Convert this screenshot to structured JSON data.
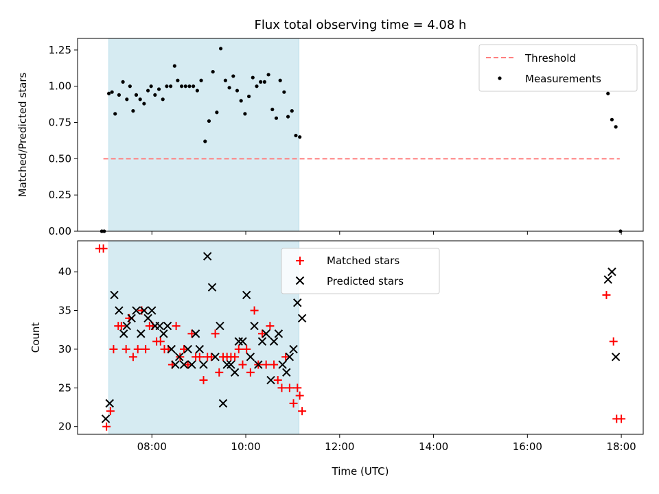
{
  "chart_data": [
    {
      "type": "scatter",
      "title": "Flux total observing time = 4.08 h",
      "ylabel": "Matched/Predicted stars",
      "xlabel": "",
      "ylim": [
        0,
        1.33
      ],
      "yticks": [
        0,
        0.25,
        0.5,
        0.75,
        1.0,
        1.25
      ],
      "ytick_labels": [
        "0.00",
        "0.25",
        "0.50",
        "0.75",
        "1.00",
        "1.25"
      ],
      "legend": {
        "placement": "top-right",
        "entries": [
          "Threshold",
          "Measurements"
        ]
      },
      "threshold": {
        "name": "Threshold",
        "value": 0.5,
        "x_start": "06:58",
        "x_end": "17:58",
        "color": "#ff7f7f"
      },
      "shaded_interval": {
        "start": "07:05",
        "end": "11:08",
        "color": "#add8e6"
      },
      "series": [
        {
          "name": "Measurements",
          "color": "#000000",
          "points": [
            [
              "06:56",
              0.0
            ],
            [
              "06:59",
              0.0
            ],
            [
              "07:05",
              0.95
            ],
            [
              "07:09",
              0.96
            ],
            [
              "07:13",
              0.81
            ],
            [
              "07:18",
              0.94
            ],
            [
              "07:23",
              1.03
            ],
            [
              "07:28",
              0.91
            ],
            [
              "07:32",
              1.0
            ],
            [
              "07:36",
              0.83
            ],
            [
              "07:40",
              0.94
            ],
            [
              "07:45",
              0.91
            ],
            [
              "07:50",
              0.88
            ],
            [
              "07:55",
              0.97
            ],
            [
              "07:59",
              1.0
            ],
            [
              "08:04",
              0.94
            ],
            [
              "08:09",
              0.98
            ],
            [
              "08:14",
              0.91
            ],
            [
              "08:19",
              1.0
            ],
            [
              "08:24",
              1.0
            ],
            [
              "08:29",
              1.14
            ],
            [
              "08:33",
              1.04
            ],
            [
              "08:38",
              1.0
            ],
            [
              "08:43",
              1.0
            ],
            [
              "08:48",
              1.0
            ],
            [
              "08:53",
              1.0
            ],
            [
              "08:58",
              0.97
            ],
            [
              "09:03",
              1.04
            ],
            [
              "09:08",
              0.62
            ],
            [
              "09:13",
              0.76
            ],
            [
              "09:18",
              1.1
            ],
            [
              "09:23",
              0.82
            ],
            [
              "09:28",
              1.26
            ],
            [
              "09:34",
              1.04
            ],
            [
              "09:39",
              0.99
            ],
            [
              "09:44",
              1.07
            ],
            [
              "09:49",
              0.97
            ],
            [
              "09:54",
              0.9
            ],
            [
              "09:59",
              0.81
            ],
            [
              "10:04",
              0.93
            ],
            [
              "10:09",
              1.06
            ],
            [
              "10:14",
              1.0
            ],
            [
              "10:19",
              1.03
            ],
            [
              "10:24",
              1.03
            ],
            [
              "10:29",
              1.08
            ],
            [
              "10:34",
              0.84
            ],
            [
              "10:39",
              0.78
            ],
            [
              "10:44",
              1.04
            ],
            [
              "10:49",
              0.96
            ],
            [
              "10:54",
              0.79
            ],
            [
              "10:59",
              0.83
            ],
            [
              "11:04",
              0.66
            ],
            [
              "11:09",
              0.65
            ],
            [
              "17:43",
              0.95
            ],
            [
              "17:48",
              0.77
            ],
            [
              "17:53",
              0.72
            ],
            [
              "17:59",
              0.0
            ]
          ]
        }
      ]
    },
    {
      "type": "scatter",
      "title": "",
      "ylabel": "Count",
      "xlabel": "Time (UTC)",
      "ylim": [
        19,
        44
      ],
      "yticks": [
        20,
        25,
        30,
        35,
        40
      ],
      "xlim": [
        "06:25",
        "18:28"
      ],
      "xticks": [
        "08:00",
        "10:00",
        "12:00",
        "14:00",
        "16:00",
        "18:00"
      ],
      "legend": {
        "placement": "top-center",
        "entries": [
          "Matched stars",
          "Predicted stars"
        ]
      },
      "shaded_interval": {
        "start": "07:05",
        "end": "11:08",
        "color": "#add8e6"
      },
      "series": [
        {
          "name": "Matched stars",
          "marker": "plus",
          "color": "#ff0000",
          "points": [
            [
              "06:53",
              43
            ],
            [
              "06:58",
              43
            ],
            [
              "07:02",
              20
            ],
            [
              "07:07",
              22
            ],
            [
              "07:11",
              30
            ],
            [
              "07:17",
              33
            ],
            [
              "07:21",
              33
            ],
            [
              "07:27",
              30
            ],
            [
              "07:31",
              34
            ],
            [
              "07:36",
              29
            ],
            [
              "07:42",
              30
            ],
            [
              "07:47",
              35
            ],
            [
              "07:52",
              30
            ],
            [
              "07:57",
              33
            ],
            [
              "08:01",
              33
            ],
            [
              "08:06",
              31
            ],
            [
              "08:11",
              31
            ],
            [
              "08:16",
              30
            ],
            [
              "08:21",
              30
            ],
            [
              "08:26",
              28
            ],
            [
              "08:31",
              33
            ],
            [
              "08:36",
              29
            ],
            [
              "08:41",
              30
            ],
            [
              "08:46",
              28
            ],
            [
              "08:51",
              32
            ],
            [
              "08:56",
              29
            ],
            [
              "09:01",
              29
            ],
            [
              "09:06",
              26
            ],
            [
              "09:11",
              29
            ],
            [
              "09:16",
              29
            ],
            [
              "09:21",
              32
            ],
            [
              "09:26",
              27
            ],
            [
              "09:31",
              29
            ],
            [
              "09:36",
              29
            ],
            [
              "09:41",
              29
            ],
            [
              "09:46",
              29
            ],
            [
              "09:51",
              30
            ],
            [
              "09:56",
              28
            ],
            [
              "10:01",
              30
            ],
            [
              "10:06",
              27
            ],
            [
              "10:11",
              35
            ],
            [
              "10:16",
              28
            ],
            [
              "10:21",
              32
            ],
            [
              "10:26",
              28
            ],
            [
              "10:31",
              33
            ],
            [
              "10:36",
              28
            ],
            [
              "10:41",
              26
            ],
            [
              "10:46",
              25
            ],
            [
              "10:51",
              29
            ],
            [
              "10:56",
              25
            ],
            [
              "11:01",
              23
            ],
            [
              "11:06",
              25
            ],
            [
              "11:09",
              24
            ],
            [
              "11:12",
              22
            ],
            [
              "17:41",
              37
            ],
            [
              "17:50",
              31
            ],
            [
              "17:54",
              21
            ],
            [
              "18:00",
              21
            ]
          ]
        },
        {
          "name": "Predicted stars",
          "marker": "x",
          "color": "#000000",
          "points": [
            [
              "07:01",
              21
            ],
            [
              "07:06",
              23
            ],
            [
              "07:12",
              37
            ],
            [
              "07:18",
              35
            ],
            [
              "07:24",
              32
            ],
            [
              "07:28",
              33
            ],
            [
              "07:34",
              34
            ],
            [
              "07:40",
              35
            ],
            [
              "07:46",
              32
            ],
            [
              "07:50",
              35
            ],
            [
              "07:55",
              34
            ],
            [
              "08:00",
              35
            ],
            [
              "08:04",
              33
            ],
            [
              "08:10",
              33
            ],
            [
              "08:15",
              32
            ],
            [
              "08:20",
              33
            ],
            [
              "08:25",
              30
            ],
            [
              "08:30",
              28
            ],
            [
              "08:35",
              29
            ],
            [
              "08:41",
              28
            ],
            [
              "08:46",
              30
            ],
            [
              "08:51",
              28
            ],
            [
              "08:56",
              32
            ],
            [
              "09:01",
              30
            ],
            [
              "09:06",
              28
            ],
            [
              "09:11",
              42
            ],
            [
              "09:17",
              38
            ],
            [
              "09:21",
              29
            ],
            [
              "09:27",
              33
            ],
            [
              "09:31",
              23
            ],
            [
              "09:36",
              28
            ],
            [
              "09:41",
              28
            ],
            [
              "09:46",
              27
            ],
            [
              "09:51",
              31
            ],
            [
              "09:56",
              31
            ],
            [
              "10:01",
              37
            ],
            [
              "10:06",
              29
            ],
            [
              "10:11",
              33
            ],
            [
              "10:16",
              28
            ],
            [
              "10:21",
              31
            ],
            [
              "10:26",
              32
            ],
            [
              "10:32",
              26
            ],
            [
              "10:36",
              31
            ],
            [
              "10:42",
              32
            ],
            [
              "10:47",
              28
            ],
            [
              "10:52",
              27
            ],
            [
              "10:56",
              29
            ],
            [
              "11:01",
              30
            ],
            [
              "11:06",
              36
            ],
            [
              "11:12",
              34
            ],
            [
              "17:43",
              39
            ],
            [
              "17:48",
              40
            ],
            [
              "17:53",
              29
            ]
          ]
        }
      ]
    }
  ]
}
